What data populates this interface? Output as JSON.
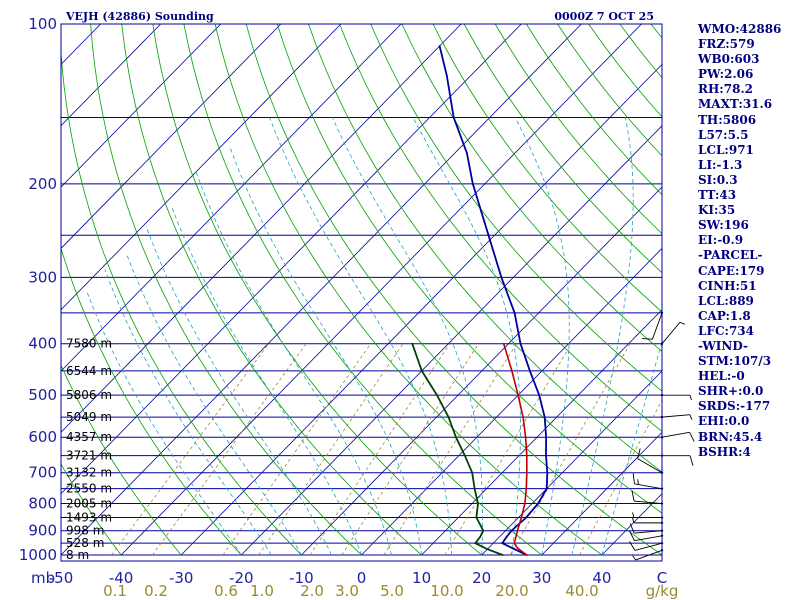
{
  "header": {
    "station": "VEJH (42886) Sounding",
    "time": "0000Z  7 OCT 25"
  },
  "indices": [
    "WMO:42886",
    "FRZ:579",
    "WB0:603",
    "PW:2.06",
    "RH:78.2",
    "MAXT:31.6",
    "TH:5806",
    "L57:5.5",
    "LCL:971",
    "LI:-1.3",
    "SI:0.3",
    "TT:43",
    "KI:35",
    "SW:196",
    "EI:-0.9",
    "-PARCEL-",
    "CAPE:179",
    "CINH:51",
    "LCL:889",
    "CAP:1.8",
    "LFC:734",
    "-WIND-",
    "STM:107/3",
    "HEL:-0",
    "SHR+:0.0",
    "SRDS:-177",
    "EHI:0.0",
    "BRN:45.4",
    "BSHR:4"
  ],
  "colors": {
    "isobar": "#0000a0",
    "isotherm": "#0000a0",
    "dry_adiabat": "#00a000",
    "moist_adiabat": "#20a0c0",
    "mixing_ratio": "#9a8a30",
    "temperature": "#0000a0",
    "dewpoint": "#004000",
    "parcel": "#c00000",
    "axis_text": "#2020a0",
    "header_text": "#000080"
  },
  "chart_data": {
    "type": "skew-t log-p",
    "title": "VEJH (42886) Sounding",
    "valid_time": "0000Z  7 OCT 25",
    "pressure_axis": {
      "unit": "mb",
      "range": [
        1000,
        100
      ],
      "scale": "log",
      "tick_labels": [
        "100",
        "200",
        "300",
        "400",
        "500",
        "600",
        "700",
        "800",
        "900",
        "1000"
      ]
    },
    "isobars_mb": [
      1000,
      950,
      900,
      850,
      800,
      750,
      700,
      650,
      600,
      550,
      500,
      450,
      400,
      350,
      300,
      250,
      200,
      150,
      100
    ],
    "temperature_axis": {
      "unit": "C",
      "range": [
        -50,
        50
      ],
      "tick_labels": [
        "-50",
        "-40",
        "-30",
        "-20",
        "-10",
        "0",
        "10",
        "20",
        "30",
        "40",
        "C"
      ]
    },
    "mixing_ratio_axis": {
      "unit": "g/kg",
      "tick_labels": [
        "0.1",
        "0.2",
        "0.6",
        "1.0",
        "2.0",
        "3.0",
        "5.0",
        "10.0",
        "20.0",
        "40.0",
        "g/kg"
      ]
    },
    "height_labels": [
      "7580 m",
      "6544 m",
      "5806 m",
      "5049 m",
      "4357 m",
      "3721 m",
      "3132 m",
      "2550 m",
      "2005 m",
      "1493 m",
      "998 m",
      "528 m",
      "8 m"
    ],
    "series": [
      {
        "name": "temperature",
        "points": [
          [
            1000,
            27.5
          ],
          [
            975,
            24.5
          ],
          [
            950,
            21.5
          ],
          [
            925,
            21.2
          ],
          [
            900,
            21.0
          ],
          [
            850,
            21.3
          ],
          [
            800,
            21.0
          ],
          [
            750,
            20.0
          ],
          [
            700,
            17.5
          ],
          [
            650,
            14.5
          ],
          [
            600,
            11.5
          ],
          [
            550,
            8.0
          ],
          [
            500,
            3.5
          ],
          [
            450,
            -2.0
          ],
          [
            400,
            -8.0
          ],
          [
            350,
            -14.0
          ],
          [
            300,
            -22.0
          ],
          [
            250,
            -31.0
          ],
          [
            200,
            -42.0
          ],
          [
            175,
            -48.0
          ],
          [
            150,
            -56.0
          ],
          [
            125,
            -64.0
          ],
          [
            110,
            -70.0
          ]
        ]
      },
      {
        "name": "dewpoint",
        "points": [
          [
            1000,
            23.5
          ],
          [
            975,
            20.0
          ],
          [
            950,
            17.0
          ],
          [
            925,
            16.8
          ],
          [
            900,
            16.3
          ],
          [
            850,
            13.0
          ],
          [
            800,
            11.0
          ],
          [
            750,
            8.0
          ],
          [
            700,
            5.0
          ],
          [
            650,
            1.0
          ],
          [
            600,
            -3.5
          ],
          [
            550,
            -8.0
          ],
          [
            500,
            -13.5
          ],
          [
            450,
            -20.0
          ],
          [
            400,
            -26.0
          ]
        ]
      },
      {
        "name": "parcel",
        "points": [
          [
            1000,
            27.5
          ],
          [
            970,
            24.8
          ],
          [
            950,
            23.5
          ],
          [
            920,
            22.6
          ],
          [
            900,
            22.0
          ],
          [
            850,
            20.5
          ],
          [
            800,
            18.8
          ],
          [
            750,
            16.6
          ],
          [
            700,
            14.1
          ],
          [
            650,
            11.3
          ],
          [
            600,
            8.1
          ],
          [
            550,
            4.4
          ],
          [
            500,
            0.0
          ],
          [
            450,
            -5.0
          ],
          [
            400,
            -10.8
          ]
        ]
      }
    ],
    "wind_barbs": [
      {
        "p": 980,
        "dir": 250,
        "spd": 5
      },
      {
        "p": 950,
        "dir": 255,
        "spd": 10
      },
      {
        "p": 920,
        "dir": 260,
        "spd": 10
      },
      {
        "p": 900,
        "dir": 265,
        "spd": 10
      },
      {
        "p": 870,
        "dir": 270,
        "spd": 5
      },
      {
        "p": 850,
        "dir": 270,
        "spd": 5
      },
      {
        "p": 800,
        "dir": 275,
        "spd": 10
      },
      {
        "p": 750,
        "dir": 280,
        "spd": 15
      },
      {
        "p": 700,
        "dir": 300,
        "spd": 10
      },
      {
        "p": 650,
        "dir": 90,
        "spd": 10
      },
      {
        "p": 600,
        "dir": 80,
        "spd": 10
      },
      {
        "p": 550,
        "dir": 85,
        "spd": 5
      },
      {
        "p": 500,
        "dir": 90,
        "spd": 5
      },
      {
        "p": 400,
        "dir": 40,
        "spd": 5
      },
      {
        "p": 350,
        "dir": 200,
        "spd": 10
      }
    ]
  }
}
